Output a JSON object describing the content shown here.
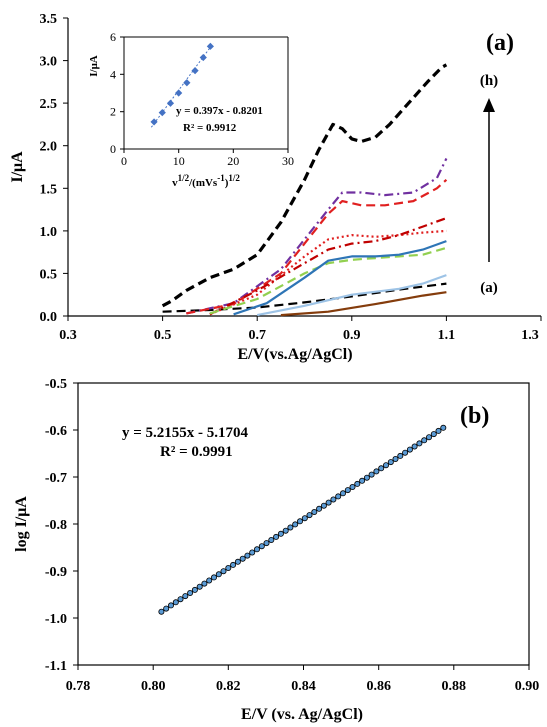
{
  "chart_data": [
    {
      "type": "line",
      "panel_label": "(a)",
      "xlabel": "E/V(vs.Ag/AgCl)",
      "ylabel": "I/μA",
      "xlim": [
        0.3,
        1.3
      ],
      "ylim": [
        0.0,
        3.5
      ],
      "x_ticks": [
        "0.3",
        "0.5",
        "0.7",
        "0.9",
        "1.1",
        "1.3"
      ],
      "y_ticks": [
        "0.0",
        "0.5",
        "1.0",
        "1.5",
        "2.0",
        "2.5",
        "3.0",
        "3.5"
      ],
      "grid": false,
      "annotations": {
        "top": "(h)",
        "bottom": "(a)"
      },
      "series": [
        {
          "color": "#000000",
          "dash": "long-dash",
          "x": [
            0.5,
            0.52,
            0.55,
            0.6,
            0.65,
            0.7,
            0.75,
            0.8,
            0.83,
            0.86,
            0.88,
            0.9,
            0.92,
            0.95,
            0.98,
            1.02,
            1.06,
            1.09,
            1.1
          ],
          "y": [
            0.12,
            0.18,
            0.3,
            0.45,
            0.55,
            0.72,
            1.1,
            1.6,
            1.95,
            2.25,
            2.2,
            2.08,
            2.05,
            2.1,
            2.25,
            2.5,
            2.75,
            2.92,
            2.95
          ]
        },
        {
          "color": "#000000",
          "dash": "long-dash",
          "x": [
            0.5,
            0.6,
            0.7,
            0.8,
            0.9,
            1.0,
            1.1
          ],
          "y": [
            0.05,
            0.07,
            0.1,
            0.16,
            0.23,
            0.31,
            0.38
          ]
        },
        {
          "color": "#7030a0",
          "dash": "dash-dot",
          "x": [
            0.55,
            0.65,
            0.75,
            0.8,
            0.85,
            0.88,
            0.92,
            0.97,
            1.03,
            1.08,
            1.1
          ],
          "y": [
            0.03,
            0.15,
            0.55,
            0.9,
            1.25,
            1.45,
            1.45,
            1.42,
            1.45,
            1.62,
            1.85
          ]
        },
        {
          "color": "#e02020",
          "dash": "long-dash",
          "x": [
            0.55,
            0.65,
            0.75,
            0.8,
            0.85,
            0.88,
            0.92,
            0.97,
            1.03,
            1.08,
            1.1
          ],
          "y": [
            0.03,
            0.14,
            0.5,
            0.85,
            1.2,
            1.35,
            1.3,
            1.3,
            1.35,
            1.5,
            1.6
          ]
        },
        {
          "color": "#e02020",
          "dash": "dotted",
          "x": [
            0.6,
            0.7,
            0.8,
            0.85,
            0.9,
            0.95,
            1.0,
            1.05,
            1.1
          ],
          "y": [
            0.02,
            0.25,
            0.7,
            0.9,
            0.95,
            0.93,
            0.95,
            0.98,
            1.0
          ]
        },
        {
          "color": "#c00000",
          "dash": "dash-dot",
          "x": [
            0.6,
            0.7,
            0.8,
            0.85,
            0.9,
            0.95,
            1.0,
            1.05,
            1.1
          ],
          "y": [
            0.02,
            0.3,
            0.62,
            0.78,
            0.85,
            0.88,
            0.95,
            1.05,
            1.15
          ]
        },
        {
          "color": "#92d050",
          "dash": "long-dash",
          "x": [
            0.6,
            0.7,
            0.8,
            0.85,
            0.9,
            0.95,
            1.0,
            1.05,
            1.1
          ],
          "y": [
            0.03,
            0.2,
            0.5,
            0.62,
            0.66,
            0.68,
            0.7,
            0.72,
            0.8
          ]
        },
        {
          "color": "#2e75b6",
          "dash": "solid",
          "x": [
            0.65,
            0.72,
            0.8,
            0.85,
            0.9,
            0.95,
            1.0,
            1.05,
            1.1
          ],
          "y": [
            0.02,
            0.15,
            0.45,
            0.65,
            0.7,
            0.7,
            0.72,
            0.78,
            0.88
          ]
        },
        {
          "color": "#9dc3e6",
          "dash": "solid",
          "x": [
            0.7,
            0.8,
            0.9,
            1.0,
            1.05,
            1.1
          ],
          "y": [
            0.01,
            0.12,
            0.25,
            0.32,
            0.38,
            0.48
          ]
        },
        {
          "color": "#843c0c",
          "dash": "solid",
          "x": [
            0.75,
            0.85,
            0.95,
            1.05,
            1.1
          ],
          "y": [
            0.01,
            0.05,
            0.14,
            0.24,
            0.28
          ]
        }
      ],
      "inset": {
        "type": "scatter",
        "xlabel": "v1/2/(mVs-1)1/2",
        "ylabel": "I/μA",
        "xlim": [
          0,
          30
        ],
        "ylim": [
          0,
          6
        ],
        "x_ticks": [
          "0",
          "10",
          "20",
          "30"
        ],
        "y_ticks": [
          "0",
          "2",
          "4",
          "6"
        ],
        "equation": "y = 0.397x - 0.8201",
        "r2": "R² = 0.9912",
        "color": "#4472c4",
        "x": [
          5.5,
          7.0,
          8.5,
          10.0,
          11.5,
          13.0,
          14.5,
          15.8
        ],
        "y": [
          1.45,
          1.95,
          2.45,
          3.0,
          3.55,
          4.2,
          4.9,
          5.5
        ]
      }
    },
    {
      "type": "scatter",
      "panel_label": "(b)",
      "xlabel": "E/V (vs. Ag/AgCl)",
      "ylabel": "log I/μA",
      "xlim": [
        0.78,
        0.9
      ],
      "ylim": [
        -1.1,
        -0.5
      ],
      "x_ticks": [
        "0.78",
        "0.80",
        "0.82",
        "0.84",
        "0.86",
        "0.88",
        "0.90"
      ],
      "y_ticks": [
        "-0.5",
        "-0.6",
        "-0.7",
        "-0.8",
        "-0.9",
        "-1.0",
        "-1.1"
      ],
      "equation": "y = 5.2155x - 5.1704",
      "r2": "R² = 0.9991",
      "slope": 5.2155,
      "intercept": -5.1704,
      "x_start": 0.8022,
      "x_end": 0.8772,
      "n_points": 60,
      "marker_color": "#5b9bd5"
    }
  ]
}
